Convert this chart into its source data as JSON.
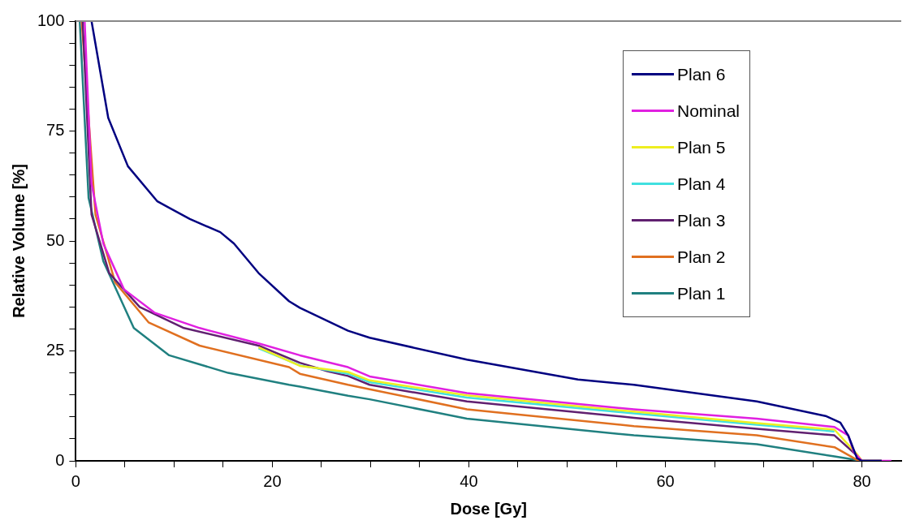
{
  "chart_data": {
    "type": "line",
    "xlabel": "Dose [Gy]",
    "ylabel": "Relative Volume [%]",
    "xlim": [
      0,
      84
    ],
    "ylim": [
      0,
      100
    ],
    "xticks": [
      0,
      {
        "value": 5,
        "label": null
      },
      {
        "value": 10,
        "label": null
      },
      {
        "value": 15,
        "label": null
      },
      20,
      {
        "value": 25,
        "label": null
      },
      {
        "value": 30,
        "label": null
      },
      {
        "value": 35,
        "label": null
      },
      40,
      {
        "value": 45,
        "label": null
      },
      {
        "value": 50,
        "label": null
      },
      {
        "value": 55,
        "label": null
      },
      60,
      {
        "value": 65,
        "label": null
      },
      {
        "value": 70,
        "label": null
      },
      {
        "value": 75,
        "label": null
      },
      80
    ],
    "yticks": [
      0,
      {
        "value": 5,
        "label": null
      },
      {
        "value": 10,
        "label": null
      },
      {
        "value": 15,
        "label": null
      },
      {
        "value": 20,
        "label": null
      },
      25,
      {
        "value": 30,
        "label": null
      },
      {
        "value": 35,
        "label": null
      },
      {
        "value": 40,
        "label": null
      },
      {
        "value": 45,
        "label": null
      },
      50,
      {
        "value": 55,
        "label": null
      },
      {
        "value": 60,
        "label": null
      },
      {
        "value": 65,
        "label": null
      },
      {
        "value": 70,
        "label": null
      },
      75,
      {
        "value": 80,
        "label": null
      },
      {
        "value": 85,
        "label": null
      },
      {
        "value": 90,
        "label": null
      },
      {
        "value": 95,
        "label": null
      },
      100
    ],
    "grid": false,
    "legend": "top right",
    "marker": "none",
    "line_style": "solid",
    "series": [
      {
        "name": "Plan 6",
        "color": "#000080",
        "x": [
          1.6,
          3.3,
          5.3,
          8.3,
          11.6,
          14.7,
          16.1,
          18.6,
          21.7,
          22.8,
          27.7,
          29.9,
          39.8,
          51.1,
          56.8,
          69.3,
          76.3,
          77.8,
          78.6,
          79.5,
          80,
          82
        ],
        "values": [
          100,
          78,
          67,
          59,
          55,
          52,
          49.4,
          42.7,
          36.3,
          34.8,
          29.6,
          28,
          23,
          18.5,
          17.3,
          13.5,
          10.2,
          8.7,
          5.8,
          0.6,
          0,
          0
        ]
      },
      {
        "name": "Nominal",
        "color": "#e020e0",
        "x": [
          0.9,
          1.6,
          2.8,
          4.9,
          8,
          12.6,
          18.6,
          22.8,
          27.7,
          29.9,
          39.8,
          56.8,
          69.3,
          77.2,
          78.6,
          79.2,
          80,
          83
        ],
        "values": [
          100,
          63,
          49.4,
          39,
          33.7,
          30.2,
          26.7,
          24,
          21.3,
          19.2,
          15.4,
          11.7,
          9.6,
          7.7,
          5.8,
          1.9,
          0,
          0
        ]
      },
      {
        "name": "Plan 5",
        "color": "#eeee20",
        "x": [
          18.6,
          22.8,
          27.7,
          29.9,
          39.8,
          56.8,
          69.3,
          77.2,
          79.5,
          80,
          82
        ],
        "values": [
          25.8,
          21.6,
          20.2,
          18.3,
          14.9,
          11.2,
          8.6,
          7.1,
          1.5,
          0,
          0
        ]
      },
      {
        "name": "Plan 4",
        "color": "#40e0e0",
        "x": [
          18.6,
          22.8,
          27.7,
          29.9,
          39.8,
          56.8,
          69.3,
          77.2,
          79.5,
          80,
          82
        ],
        "values": [
          25.6,
          21.7,
          19.8,
          17.9,
          14.4,
          10.8,
          8.2,
          6.7,
          null,
          0,
          0
        ]
      },
      {
        "name": "Plan 3",
        "color": "#602070",
        "x": [
          0.7,
          1.6,
          3.4,
          6.5,
          11,
          18.6,
          22.8,
          25.6,
          27.7,
          29.9,
          39.8,
          56.8,
          69.3,
          77.2,
          79.5,
          80,
          82
        ],
        "values": [
          100,
          56,
          42.7,
          35,
          30.2,
          26.2,
          22.3,
          20.4,
          19.3,
          17.3,
          13.5,
          9.8,
          7.3,
          5.8,
          1.2,
          0,
          0
        ]
      },
      {
        "name": "Plan 2",
        "color": "#e07020",
        "x": [
          0.6,
          2,
          4,
          7.4,
          12.6,
          21.7,
          22.8,
          27.7,
          29.9,
          39.8,
          56.8,
          69.3,
          77.2,
          79.5,
          80,
          82
        ],
        "values": [
          100,
          56,
          40.6,
          31.5,
          26.2,
          21.3,
          19.8,
          17.3,
          16.3,
          11.7,
          7.9,
          5.8,
          3.1,
          0.2,
          0,
          0
        ]
      },
      {
        "name": "Plan 1",
        "color": "#208080",
        "x": [
          0.4,
          1.3,
          2.8,
          5.9,
          9.5,
          15.5,
          21.7,
          22.8,
          27.7,
          29.9,
          39.8,
          56.8,
          69.3,
          77.2,
          80,
          82
        ],
        "values": [
          100,
          59.8,
          45.4,
          30.2,
          24,
          20,
          17.3,
          16.9,
          14.8,
          14,
          9.6,
          5.8,
          3.8,
          1,
          0,
          0
        ]
      }
    ]
  }
}
